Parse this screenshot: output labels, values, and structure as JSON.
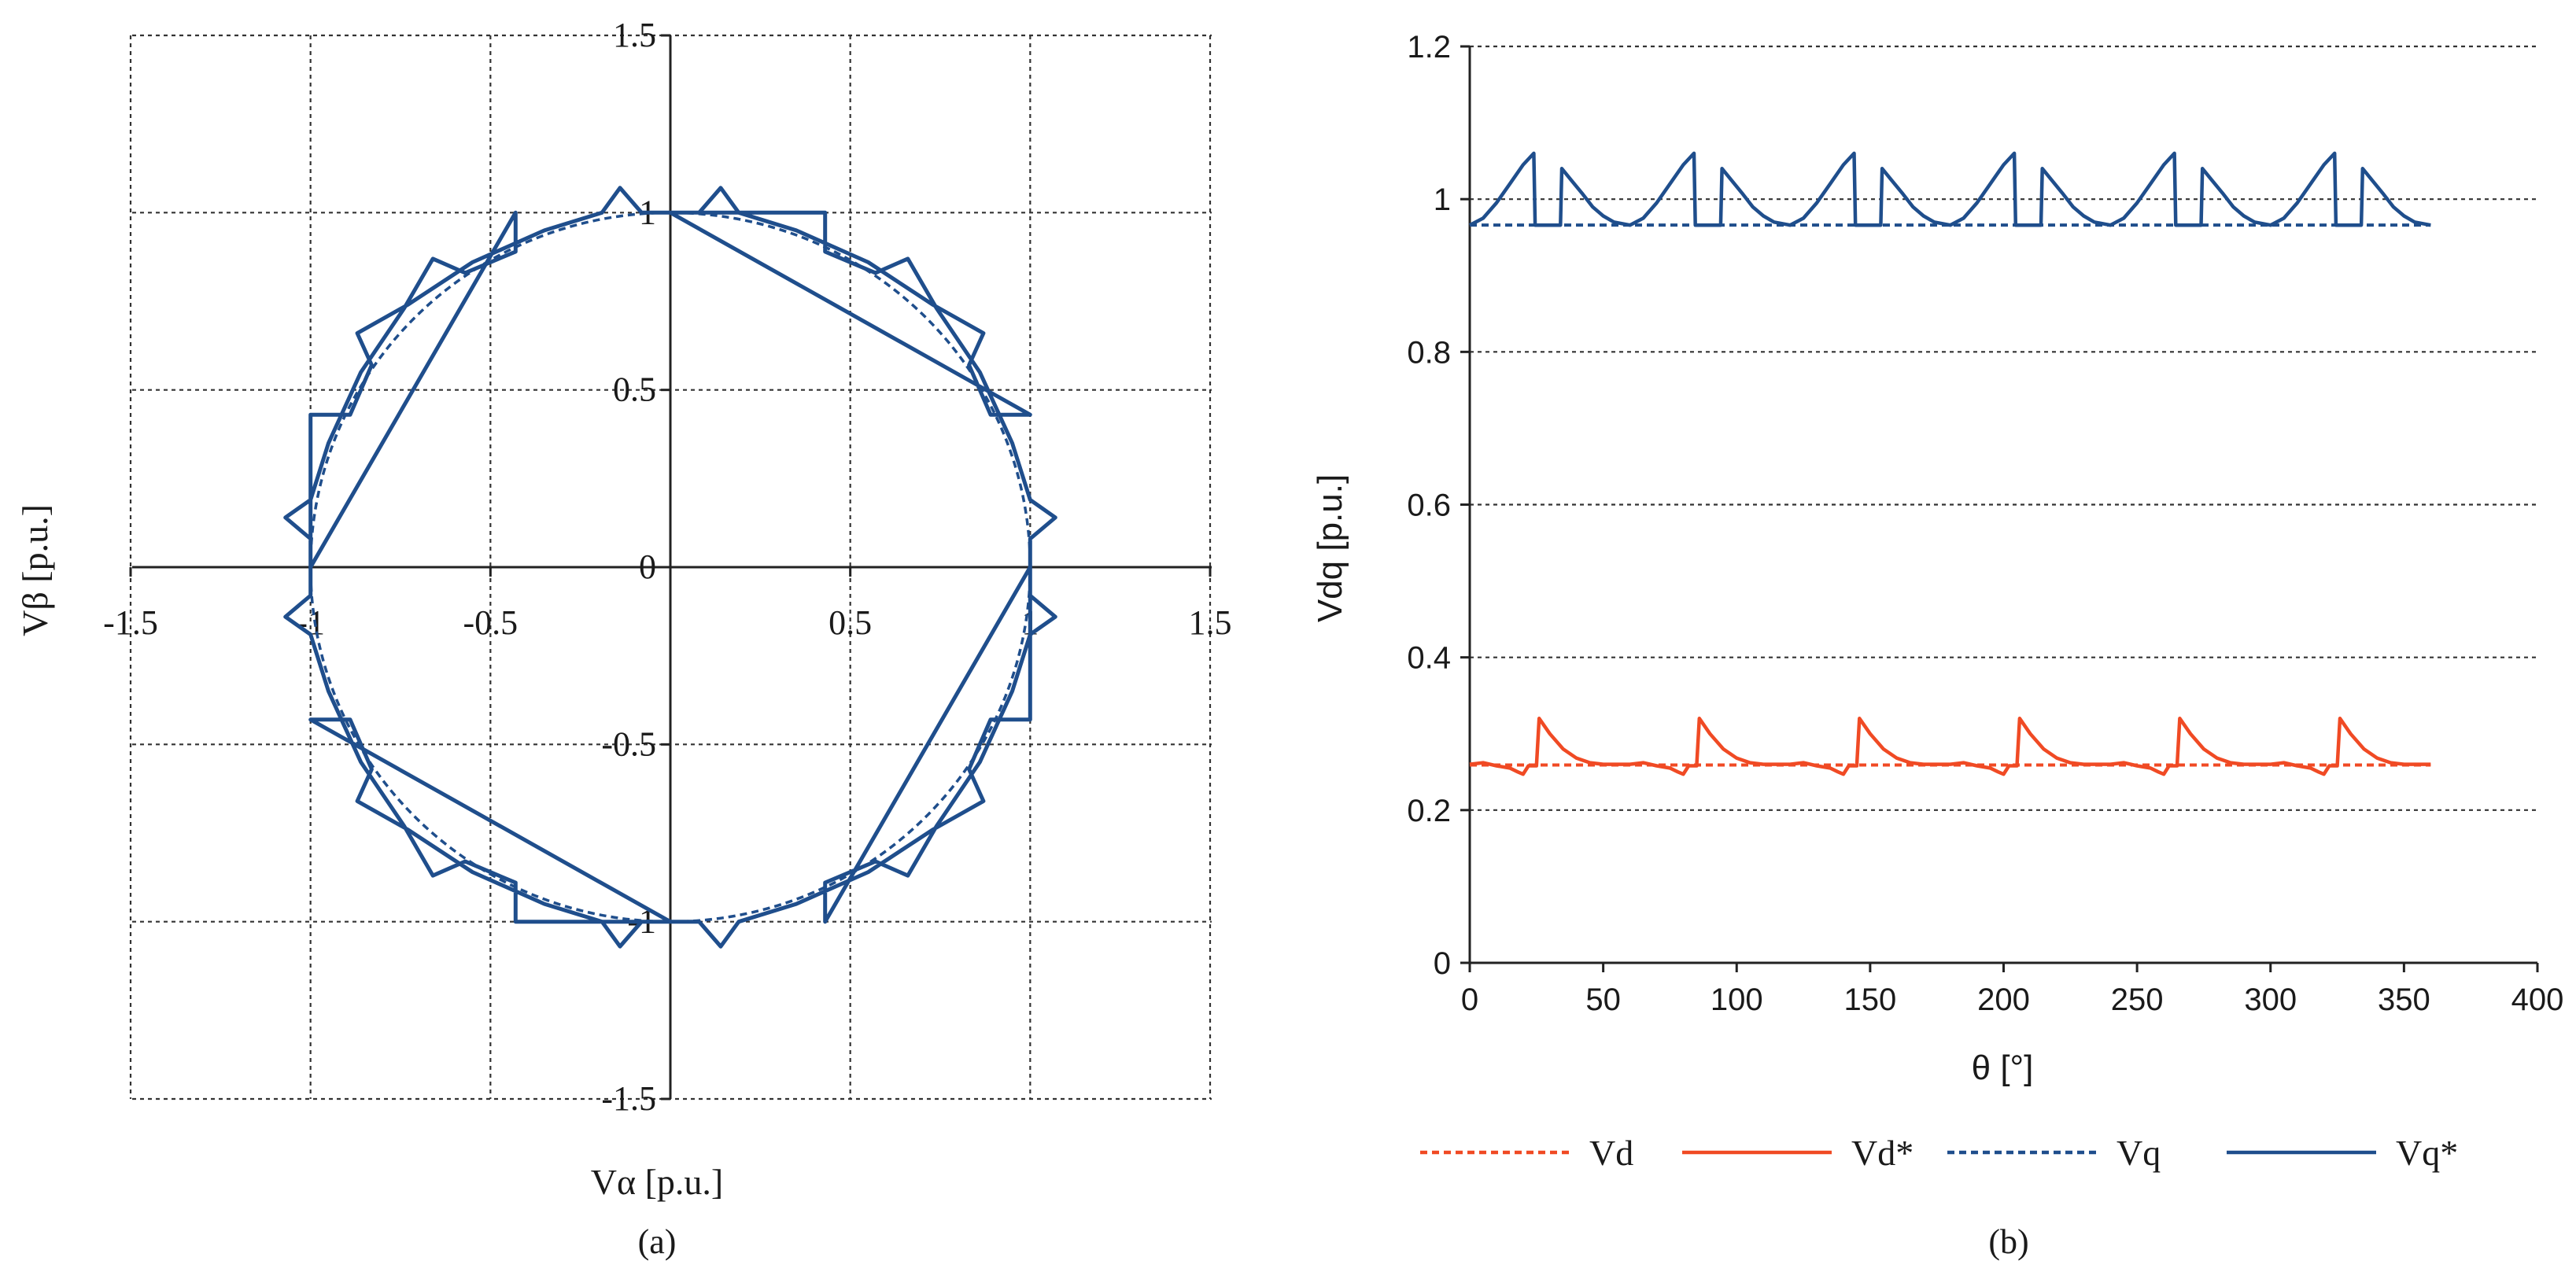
{
  "chart_data": [
    {
      "type": "line",
      "panel_label": "(a)",
      "xlabel": "Vα [p.u.]",
      "ylabel": "Vβ [p.u.]",
      "xlim": [
        -1.5,
        1.5
      ],
      "ylim": [
        -1.5,
        1.5
      ],
      "x_ticks": [
        "-1.5",
        "-1",
        "-0.5",
        "0",
        "0.5",
        "1",
        "1.5"
      ],
      "y_ticks": [
        "1.5",
        "1",
        "0.5",
        "0",
        "-0.5",
        "-1",
        "-1.5"
      ],
      "grid": true,
      "series": [
        {
          "name": "reference circle",
          "style": "dashed",
          "color": "#1f4e8c",
          "radius": 1.0
        },
        {
          "name": "modulated trajectory",
          "style": "solid",
          "color": "#1f4e8c",
          "sample_sector": [
            {
              "x": 1.0,
              "y": 0.0
            },
            {
              "x": 1.0,
              "y": 0.08
            },
            {
              "x": 1.07,
              "y": 0.14
            },
            {
              "x": 1.0,
              "y": 0.19
            },
            {
              "x": 0.95,
              "y": 0.35
            },
            {
              "x": 0.86,
              "y": 0.55
            },
            {
              "x": 0.74,
              "y": 0.73
            },
            {
              "x": 0.66,
              "y": 0.87
            },
            {
              "x": 0.57,
              "y": 0.83
            },
            {
              "x": 0.43,
              "y": 0.89
            },
            {
              "x": 0.43,
              "y": 1.0
            },
            {
              "x": 0.0,
              "y": 1.0
            }
          ]
        }
      ]
    },
    {
      "type": "line",
      "panel_label": "(b)",
      "xlabel": "θ [°]",
      "ylabel": "Vdq [p.u.]",
      "xlim": [
        0,
        400
      ],
      "ylim": [
        0,
        1.2
      ],
      "x_ticks": [
        "0",
        "50",
        "100",
        "150",
        "200",
        "250",
        "300",
        "350",
        "400"
      ],
      "y_ticks": [
        "1.2",
        "1",
        "0.8",
        "0.6",
        "0.4",
        "0.2",
        "0"
      ],
      "grid": true,
      "period_deg": 60,
      "x_end": 360,
      "series": [
        {
          "name": "Vd",
          "style": "dashed",
          "color": "#f04a24",
          "value": 0.259
        },
        {
          "name": "Vd*",
          "style": "solid",
          "color": "#f04a24",
          "period_profile": [
            [
              0,
              0.26
            ],
            [
              5,
              0.262
            ],
            [
              10,
              0.258
            ],
            [
              15,
              0.255
            ],
            [
              18,
              0.25
            ],
            [
              20,
              0.247
            ],
            [
              22,
              0.258
            ],
            [
              24,
              0.258
            ],
            [
              25,
              0.258
            ],
            [
              26,
              0.32
            ],
            [
              30,
              0.3
            ],
            [
              35,
              0.28
            ],
            [
              40,
              0.268
            ],
            [
              45,
              0.262
            ],
            [
              50,
              0.26
            ],
            [
              55,
              0.26
            ],
            [
              60,
              0.26
            ]
          ]
        },
        {
          "name": "Vq",
          "style": "dashed",
          "color": "#1f4e8c",
          "value": 0.966
        },
        {
          "name": "Vq*",
          "style": "solid",
          "color": "#1f4e8c",
          "period_profile": [
            [
              0,
              0.966
            ],
            [
              5,
              0.975
            ],
            [
              10,
              0.995
            ],
            [
              15,
              1.02
            ],
            [
              20,
              1.045
            ],
            [
              24,
              1.06
            ],
            [
              24.5,
              0.966
            ],
            [
              30,
              0.966
            ],
            [
              34,
              0.966
            ],
            [
              34.5,
              1.04
            ],
            [
              38,
              1.025
            ],
            [
              42,
              1.008
            ],
            [
              46,
              0.99
            ],
            [
              50,
              0.978
            ],
            [
              54,
              0.97
            ],
            [
              60,
              0.966
            ]
          ]
        }
      ],
      "legend": [
        "Vd",
        "Vd*",
        "Vq",
        "Vq*"
      ],
      "legend_placement": "bottom"
    }
  ]
}
